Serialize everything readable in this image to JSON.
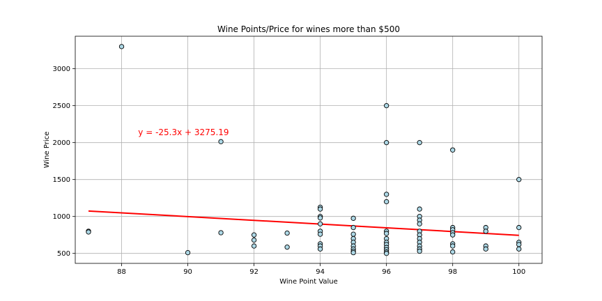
{
  "chart_data": {
    "type": "scatter",
    "title": "Wine Points/Price for wines more than $500",
    "xlabel": "Wine Point Value",
    "ylabel": "Wine Price",
    "xlim": [
      86.6,
      100.7
    ],
    "ylim": [
      365,
      3440
    ],
    "xticks": [
      88,
      90,
      92,
      94,
      96,
      98,
      100
    ],
    "yticks": [
      500,
      1000,
      1500,
      2000,
      2500,
      3000
    ],
    "grid": true,
    "marker_color": "#add8e6",
    "marker_edge": "#000000",
    "points": [
      [
        87,
        800
      ],
      [
        87,
        790
      ],
      [
        88,
        3300
      ],
      [
        90,
        510
      ],
      [
        91,
        2013
      ],
      [
        91,
        780
      ],
      [
        92,
        750
      ],
      [
        92,
        680
      ],
      [
        92,
        600
      ],
      [
        93,
        775
      ],
      [
        93,
        585
      ],
      [
        94,
        1125
      ],
      [
        94,
        1100
      ],
      [
        94,
        1000
      ],
      [
        94,
        980
      ],
      [
        94,
        900
      ],
      [
        94,
        800
      ],
      [
        94,
        760
      ],
      [
        94,
        630
      ],
      [
        94,
        600
      ],
      [
        94,
        560
      ],
      [
        95,
        975
      ],
      [
        95,
        850
      ],
      [
        95,
        760
      ],
      [
        95,
        700
      ],
      [
        95,
        650
      ],
      [
        95,
        600
      ],
      [
        95,
        560
      ],
      [
        95,
        530
      ],
      [
        95,
        510
      ],
      [
        96,
        2500
      ],
      [
        96,
        2000
      ],
      [
        96,
        1300
      ],
      [
        96,
        1200
      ],
      [
        96,
        800
      ],
      [
        96,
        770
      ],
      [
        96,
        700
      ],
      [
        96,
        650
      ],
      [
        96,
        620
      ],
      [
        96,
        580
      ],
      [
        96,
        550
      ],
      [
        96,
        520
      ],
      [
        96,
        500
      ],
      [
        97,
        2000
      ],
      [
        97,
        1100
      ],
      [
        97,
        1000
      ],
      [
        97,
        950
      ],
      [
        97,
        900
      ],
      [
        97,
        800
      ],
      [
        97,
        750
      ],
      [
        97,
        700
      ],
      [
        97,
        650
      ],
      [
        97,
        600
      ],
      [
        97,
        560
      ],
      [
        97,
        530
      ],
      [
        98,
        1900
      ],
      [
        98,
        850
      ],
      [
        98,
        820
      ],
      [
        98,
        780
      ],
      [
        98,
        750
      ],
      [
        98,
        630
      ],
      [
        98,
        600
      ],
      [
        98,
        520
      ],
      [
        99,
        850
      ],
      [
        99,
        800
      ],
      [
        99,
        600
      ],
      [
        99,
        560
      ],
      [
        100,
        1500
      ],
      [
        100,
        850
      ],
      [
        100,
        650
      ],
      [
        100,
        620
      ],
      [
        100,
        560
      ]
    ],
    "regression": {
      "slope": -25.3,
      "intercept": 3275.19,
      "x_range": [
        87,
        100
      ],
      "color": "#ff0000",
      "label": "y = -25.3x + 3275.19",
      "label_anchor": [
        88.5,
        2100
      ]
    }
  }
}
